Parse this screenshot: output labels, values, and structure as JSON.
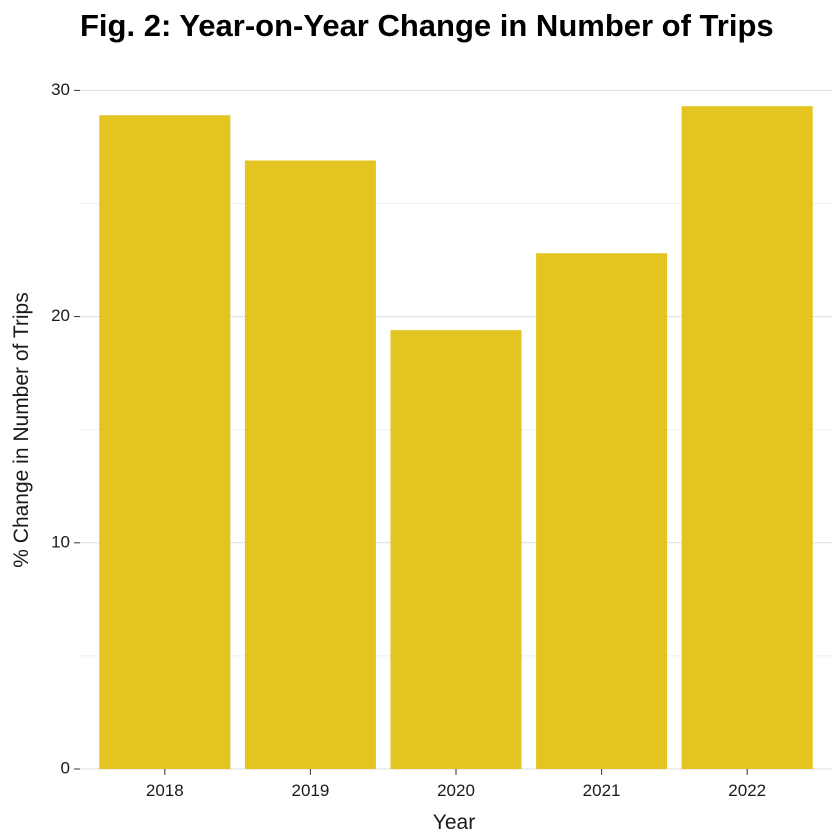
{
  "chart_data": {
    "type": "bar",
    "title": "Fig. 2: Year-on-Year Change in Number of Trips",
    "xlabel": "Year",
    "ylabel": "% Change in Number of Trips",
    "categories": [
      "2018",
      "2019",
      "2020",
      "2021",
      "2022"
    ],
    "values": [
      28.9,
      26.9,
      19.4,
      22.8,
      29.3
    ],
    "ylim": [
      0,
      30.9
    ],
    "yticks": [
      0,
      10,
      20,
      30
    ],
    "ytick_labels": [
      "0",
      "10",
      "20",
      "30"
    ],
    "grid": true,
    "legend": "none",
    "colors": {
      "bar": "#E3C421"
    }
  }
}
